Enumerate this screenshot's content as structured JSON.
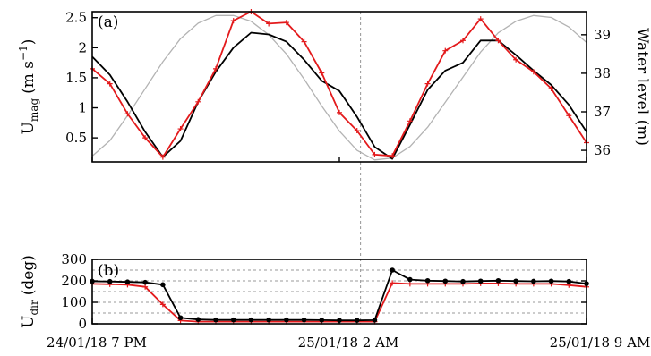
{
  "chart_data": [
    {
      "panel": "(a)",
      "type": "line",
      "ylabel_main": "U",
      "ylabel_sub": "mag",
      "ylabel_unit": "(m s",
      "ylabel_exp": "−1",
      "ylabel_close": ")",
      "y2label": "Water level (m)",
      "ylim": [
        0.1,
        2.6
      ],
      "y2lim": [
        35.7,
        39.6
      ],
      "yticks": [
        0.5,
        1,
        1.5,
        2,
        2.5
      ],
      "yticklabels": [
        "0.5",
        "1",
        "1.5",
        "2",
        "2.5"
      ],
      "y2ticks": [
        36,
        37,
        38,
        39
      ],
      "y2ticklabels": [
        "36",
        "37",
        "38",
        "39"
      ],
      "grid": false,
      "series": [
        {
          "color": "#e31a1c",
          "markers": "plus",
          "axis": "left",
          "x": [
            0,
            0.5,
            1,
            1.5,
            2,
            2.5,
            3,
            3.5,
            4,
            4.5,
            5,
            5.5,
            6,
            6.5,
            7,
            7.5,
            8,
            8.5,
            9,
            9.5,
            10,
            10.5,
            11,
            11.5,
            12,
            12.5,
            13,
            13.5,
            14
          ],
          "y": [
            1.65,
            1.4,
            0.9,
            0.5,
            0.18,
            0.65,
            1.1,
            1.65,
            2.45,
            2.6,
            2.4,
            2.42,
            2.1,
            1.58,
            0.92,
            0.62,
            0.22,
            0.2,
            0.78,
            1.4,
            1.95,
            2.12,
            2.48,
            2.12,
            1.8,
            1.6,
            1.32,
            0.87,
            0.42
          ]
        },
        {
          "color": "#000000",
          "markers": "none",
          "axis": "left",
          "x": [
            0,
            0.5,
            1,
            1.5,
            2,
            2.5,
            3,
            3.5,
            4,
            4.5,
            5,
            5.5,
            6,
            6.5,
            7,
            7.5,
            8,
            8.5,
            9,
            9.5,
            10,
            10.5,
            11,
            11.5,
            12,
            12.5,
            13,
            13.5,
            14
          ],
          "y": [
            1.85,
            1.55,
            1.1,
            0.6,
            0.18,
            0.45,
            1.1,
            1.6,
            2.0,
            2.25,
            2.22,
            2.1,
            1.8,
            1.45,
            1.28,
            0.85,
            0.35,
            0.15,
            0.72,
            1.3,
            1.62,
            1.75,
            2.12,
            2.12,
            1.88,
            1.62,
            1.38,
            1.05,
            0.6
          ]
        },
        {
          "color": "#b3b3b3",
          "markers": "none",
          "axis": "right",
          "x": [
            0,
            0.5,
            1,
            1.5,
            2,
            2.5,
            3,
            3.5,
            4,
            4.5,
            5,
            5.5,
            6,
            6.5,
            7,
            7.5,
            8,
            8.5,
            9,
            9.5,
            10,
            10.5,
            11,
            11.5,
            12,
            12.5,
            13,
            13.5,
            14
          ],
          "y": [
            35.85,
            36.25,
            36.9,
            37.6,
            38.3,
            38.9,
            39.3,
            39.5,
            39.5,
            39.35,
            39.0,
            38.5,
            37.85,
            37.15,
            36.5,
            36.0,
            35.75,
            35.8,
            36.1,
            36.6,
            37.25,
            37.9,
            38.55,
            39.05,
            39.35,
            39.5,
            39.45,
            39.2,
            38.8
          ]
        }
      ]
    },
    {
      "panel": "(b)",
      "type": "line",
      "ylabel_main": "U",
      "ylabel_sub": "dir",
      "ylabel_unit": "(deg)",
      "ylim": [
        0,
        300
      ],
      "yticks": [
        0,
        100,
        200,
        300
      ],
      "yticklabels": [
        "0",
        "100",
        "200",
        "300"
      ],
      "grid": true,
      "gridlines": [
        50,
        100,
        150,
        200,
        250
      ],
      "vertical_marker_x": 7.6,
      "xticks": [
        0,
        7,
        14
      ],
      "xticklabels": [
        "24/01/18  7 PM",
        "25/01/18  2 AM",
        "25/01/18  9 AM"
      ],
      "series": [
        {
          "color": "#000000",
          "markers": "dot",
          "x": [
            0,
            0.5,
            1,
            1.5,
            2,
            2.5,
            3,
            3.5,
            4,
            4.5,
            5,
            5.5,
            6,
            6.5,
            7,
            7.5,
            8,
            8.5,
            9,
            9.5,
            10,
            10.5,
            11,
            11.5,
            12,
            12.5,
            13,
            13.5,
            14
          ],
          "y": [
            198,
            197,
            195,
            193,
            182,
            28,
            20,
            18,
            18,
            18,
            18,
            18,
            18,
            17,
            16,
            16,
            17,
            250,
            206,
            201,
            199,
            197,
            199,
            201,
            199,
            198,
            199,
            197,
            187
          ]
        },
        {
          "color": "#e31a1c",
          "markers": "plus",
          "x": [
            0,
            0.5,
            1,
            1.5,
            2,
            2.5,
            3,
            3.5,
            4,
            4.5,
            5,
            5.5,
            6,
            6.5,
            7,
            7.5,
            8,
            8.5,
            9,
            9.5,
            10,
            10.5,
            11,
            11.5,
            12,
            12.5,
            13,
            13.5,
            14
          ],
          "y": [
            186,
            184,
            182,
            172,
            90,
            15,
            10,
            10,
            10,
            10,
            10,
            10,
            10,
            10,
            10,
            10,
            10,
            190,
            186,
            186,
            186,
            186,
            188,
            188,
            186,
            186,
            186,
            180,
            172
          ]
        }
      ]
    }
  ]
}
